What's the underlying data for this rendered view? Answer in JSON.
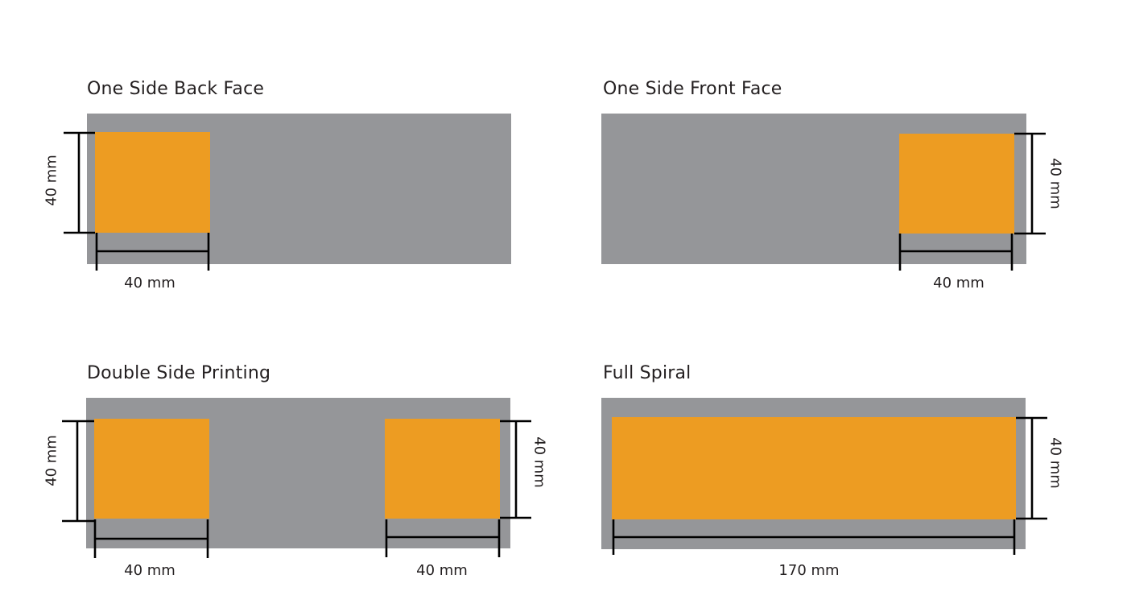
{
  "panels": {
    "back_face": {
      "title": "One Side Back Face",
      "height_label": "40 mm",
      "width_label": "40 mm"
    },
    "front_face": {
      "title": "One Side Front Face",
      "height_label": "40 mm",
      "width_label": "40 mm"
    },
    "double_side": {
      "title": "Double Side Printing",
      "left_height_label": "40 mm",
      "left_width_label": "40 mm",
      "right_height_label": "40 mm",
      "right_width_label": "40 mm"
    },
    "full_spiral": {
      "title": "Full Spiral",
      "height_label": "40 mm",
      "width_label": "170 mm"
    }
  },
  "colors": {
    "background_band": "#959699",
    "print_area": "#ed9c22",
    "dimension_lines": "#000000",
    "text": "#231f20"
  }
}
